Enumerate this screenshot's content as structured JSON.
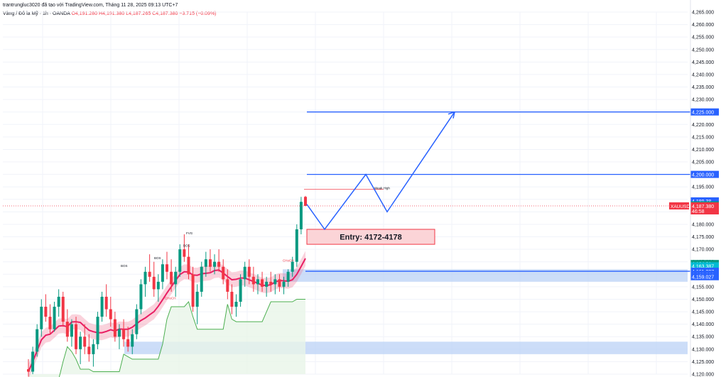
{
  "header": {
    "publisher": "trantrungluc3020 đã tạo với TradingView.com, Tháng 11 28, 2025 09:13 UTC+7",
    "symbol": "Vàng / Đô la Mỹ · 1h · OANDA",
    "open": "O4,191.280",
    "high": "H4,191.380",
    "low": "L4,187.265",
    "close": "C4,187.380",
    "change": "−3.715 (−0.09%)"
  },
  "colors": {
    "bull": "#089981",
    "bear": "#f23645",
    "trend_blue": "#2962ff",
    "zone_blue": "#bbd2f5",
    "entry_fill": "#fbd4d7",
    "entry_border": "#f23645",
    "band_pink": "#f06a8a",
    "band_cyan": "#5fd3e8",
    "green_stop": "#4caf50"
  },
  "chart_data": {
    "type": "candlestick",
    "symbol": "XAUUSD",
    "ylim": [
      4120,
      4265
    ],
    "y_ticks": [
      "4,265.000",
      "4,260.000",
      "4,255.000",
      "4,250.000",
      "4,245.000",
      "4,240.000",
      "4,235.000",
      "4,230.000",
      "4,225.000",
      "4,220.000",
      "4,215.000",
      "4,210.000",
      "4,205.000",
      "4,200.000",
      "4,195.000",
      "4,190.000",
      "4,185.000",
      "4,180.000",
      "4,175.000",
      "4,170.000",
      "4,165.000",
      "4,160.000",
      "4,155.000",
      "4,150.000",
      "4,145.000",
      "4,140.000",
      "4,135.000",
      "4,130.000",
      "4,125.000",
      "4,120.000"
    ],
    "candles": [
      [
        4122,
        4126,
        4119,
        4121
      ],
      [
        4121,
        4131,
        4120,
        4129
      ],
      [
        4129,
        4140,
        4127,
        4138
      ],
      [
        4138,
        4150,
        4135,
        4147
      ],
      [
        4147,
        4152,
        4141,
        4143
      ],
      [
        4143,
        4148,
        4136,
        4138
      ],
      [
        4138,
        4149,
        4137,
        4147
      ],
      [
        4147,
        4154,
        4143,
        4151
      ],
      [
        4151,
        4153,
        4139,
        4141
      ],
      [
        4141,
        4146,
        4133,
        4135
      ],
      [
        4135,
        4142,
        4131,
        4140
      ],
      [
        4140,
        4143,
        4128,
        4130
      ],
      [
        4130,
        4137,
        4124,
        4135
      ],
      [
        4135,
        4140,
        4128,
        4131
      ],
      [
        4131,
        4136,
        4125,
        4128
      ],
      [
        4128,
        4134,
        4123,
        4132
      ],
      [
        4132,
        4145,
        4130,
        4143
      ],
      [
        4143,
        4153,
        4141,
        4151
      ],
      [
        4151,
        4156,
        4143,
        4146
      ],
      [
        4146,
        4151,
        4139,
        4142
      ],
      [
        4142,
        4145,
        4133,
        4135
      ],
      [
        4135,
        4140,
        4130,
        4138
      ],
      [
        4138,
        4142,
        4131,
        4134
      ],
      [
        4134,
        4139,
        4129,
        4131
      ],
      [
        4131,
        4138,
        4128,
        4136
      ],
      [
        4136,
        4148,
        4134,
        4146
      ],
      [
        4146,
        4158,
        4144,
        4156
      ],
      [
        4156,
        4163,
        4151,
        4161
      ],
      [
        4161,
        4168,
        4157,
        4159
      ],
      [
        4159,
        4165,
        4151,
        4154
      ],
      [
        4154,
        4160,
        4149,
        4157
      ],
      [
        4157,
        4166,
        4154,
        4164
      ],
      [
        4164,
        4169,
        4158,
        4161
      ],
      [
        4161,
        4166,
        4153,
        4156
      ],
      [
        4156,
        4163,
        4151,
        4161
      ],
      [
        4161,
        4172,
        4159,
        4170
      ],
      [
        4170,
        4176,
        4165,
        4167
      ],
      [
        4167,
        4172,
        4158,
        4160
      ],
      [
        4160,
        4163,
        4145,
        4147
      ],
      [
        4147,
        4156,
        4140,
        4153
      ],
      [
        4153,
        4165,
        4151,
        4163
      ],
      [
        4163,
        4169,
        4159,
        4166
      ],
      [
        4166,
        4170,
        4161,
        4163
      ],
      [
        4163,
        4168,
        4160,
        4165
      ],
      [
        4165,
        4170,
        4161,
        4163
      ],
      [
        4163,
        4166,
        4156,
        4158
      ],
      [
        4158,
        4162,
        4150,
        4153
      ],
      [
        4153,
        4156,
        4144,
        4147
      ],
      [
        4147,
        4152,
        4143,
        4149
      ],
      [
        4149,
        4160,
        4147,
        4158
      ],
      [
        4158,
        4165,
        4155,
        4163
      ],
      [
        4163,
        4166,
        4156,
        4159
      ],
      [
        4159,
        4163,
        4153,
        4156
      ],
      [
        4156,
        4160,
        4152,
        4158
      ],
      [
        4158,
        4161,
        4153,
        4155
      ],
      [
        4155,
        4159,
        4151,
        4157
      ],
      [
        4157,
        4161,
        4153,
        4156
      ],
      [
        4156,
        4160,
        4152,
        4158
      ],
      [
        4158,
        4160,
        4153,
        4155
      ],
      [
        4155,
        4159,
        4152,
        4157
      ],
      [
        4157,
        4162,
        4155,
        4161
      ],
      [
        4161,
        4167,
        4159,
        4165
      ],
      [
        4165,
        4180,
        4163,
        4178
      ],
      [
        4178,
        4191,
        4176,
        4189
      ],
      [
        4191,
        4191.4,
        4187.3,
        4187.4
      ]
    ],
    "levels": [
      {
        "name": "target-2",
        "value": 4225.0
      },
      {
        "name": "target-1",
        "value": 4200.0
      },
      {
        "name": "support",
        "value": 4161.207
      }
    ],
    "price_labels": [
      {
        "text": "4,225.000",
        "value": 4225.0,
        "style": "blue"
      },
      {
        "text": "4,200.000",
        "value": 4200.0,
        "style": "blue"
      },
      {
        "text": "4,189.38",
        "value": 4189.38,
        "style": "blue"
      },
      {
        "text": "4,187.805",
        "value": 4187.805,
        "style": "green"
      },
      {
        "text": "4,164.31",
        "value": 4164.31,
        "style": "green"
      },
      {
        "text": "4,163.387",
        "value": 4163.387,
        "style": "teal"
      },
      {
        "text": "4,161.207",
        "value": 4161.207,
        "style": "blue"
      },
      {
        "text": "4,160.000",
        "value": 4160.0,
        "style": "blue"
      },
      {
        "text": "4,159.027",
        "value": 4159.027,
        "style": "blue"
      }
    ],
    "current_price": {
      "symbol": "XAUUSD",
      "price": "4,187.380",
      "countdown": "46:58",
      "value": 4187.38
    },
    "entry": {
      "label": "Entry: 4172-4178",
      "low": 4172,
      "high": 4178
    },
    "zones": [
      {
        "name": "upper-demand-zone",
        "low": 4157,
        "high": 4162
      },
      {
        "name": "lower-demand-zone",
        "low": 4128,
        "high": 4133
      }
    ],
    "projection_path": [
      [
        4178
      ],
      [
        4200
      ],
      [
        4185
      ],
      [
        4225
      ]
    ],
    "annotations": [
      {
        "text": "Weak High",
        "value": 4194
      },
      {
        "text": "BOS",
        "value": 4166
      },
      {
        "text": "BOS",
        "value": 4171
      },
      {
        "text": "CHoCH",
        "value": 4150
      },
      {
        "text": "BOS",
        "value": 4163
      },
      {
        "text": "CHoCH",
        "value": 4165
      },
      {
        "text": "FVG",
        "value": 4176
      }
    ]
  }
}
